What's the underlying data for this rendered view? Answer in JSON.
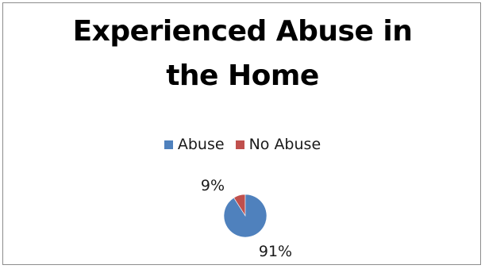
{
  "chart_data": {
    "type": "pie",
    "title": "Experienced Abuse in the Home",
    "title_lines": [
      "Experienced Abuse in",
      "the Home"
    ],
    "legend_position": "top",
    "categories": [
      "Abuse",
      "No Abuse"
    ],
    "values": [
      91,
      9
    ],
    "data_labels": [
      "91%",
      "9%"
    ],
    "colors": [
      "#4f81bd",
      "#c0504d"
    ]
  }
}
